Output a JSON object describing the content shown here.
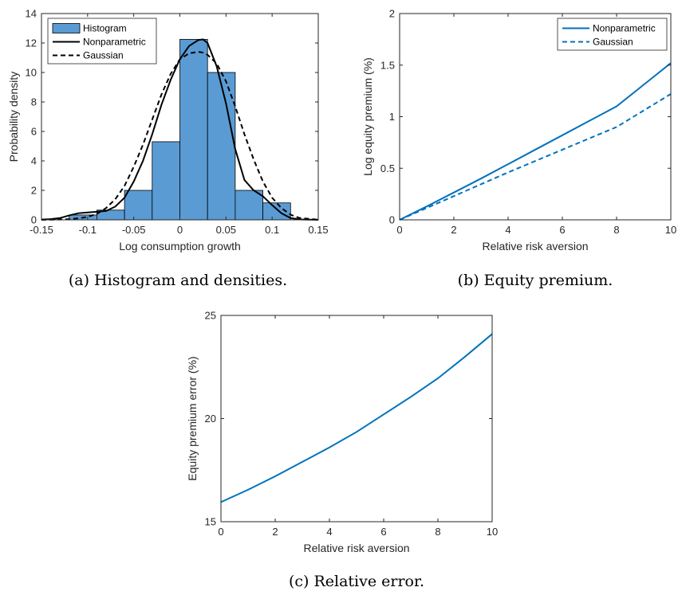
{
  "chart_data": [
    {
      "panel": "a",
      "type": "bar",
      "caption": "(a) Histogram and densities.",
      "xlabel": "Log consumption growth",
      "ylabel": "Probability density",
      "xlim": [
        -0.15,
        0.15
      ],
      "ylim": [
        0,
        14
      ],
      "xticks": [
        -0.15,
        -0.1,
        -0.05,
        0,
        0.05,
        0.1,
        0.15
      ],
      "xtick_labels": [
        "-0.15",
        "-0.1",
        "-0.05",
        "0",
        "0.05",
        "0.1",
        "0.15"
      ],
      "yticks": [
        0,
        2,
        4,
        6,
        8,
        10,
        12,
        14
      ],
      "ytick_labels": [
        "0",
        "2",
        "4",
        "6",
        "8",
        "10",
        "12",
        "14"
      ],
      "legend": [
        "Histogram",
        "Nonparametric",
        "Gaussian"
      ],
      "legend_position": "top-left",
      "histogram": {
        "bin_edges": [
          -0.12,
          -0.09,
          -0.06,
          -0.03,
          0.0,
          0.03,
          0.06,
          0.09,
          0.12
        ],
        "values": [
          0.33,
          0.66,
          2.0,
          5.3,
          12.25,
          10.0,
          2.0,
          1.15
        ],
        "color": "#5A9BD4"
      },
      "series": [
        {
          "name": "Nonparametric",
          "style": "solid",
          "color": "#000000",
          "x": [
            -0.15,
            -0.14,
            -0.13,
            -0.12,
            -0.11,
            -0.1,
            -0.09,
            -0.08,
            -0.07,
            -0.06,
            -0.05,
            -0.04,
            -0.03,
            -0.02,
            -0.01,
            0.0,
            0.01,
            0.02,
            0.025,
            0.03,
            0.04,
            0.05,
            0.06,
            0.07,
            0.08,
            0.09,
            0.1,
            0.11,
            0.12,
            0.13,
            0.15
          ],
          "y": [
            0.02,
            0.05,
            0.12,
            0.3,
            0.45,
            0.5,
            0.55,
            0.6,
            0.9,
            1.5,
            2.6,
            4.0,
            5.8,
            7.8,
            9.5,
            10.9,
            11.8,
            12.2,
            12.25,
            12.0,
            10.4,
            7.9,
            4.8,
            2.7,
            2.0,
            1.6,
            1.0,
            0.45,
            0.12,
            0.03,
            0.0
          ]
        },
        {
          "name": "Gaussian",
          "style": "dashed",
          "color": "#000000",
          "x": [
            -0.15,
            -0.14,
            -0.13,
            -0.12,
            -0.11,
            -0.1,
            -0.09,
            -0.08,
            -0.07,
            -0.06,
            -0.05,
            -0.04,
            -0.03,
            -0.02,
            -0.01,
            0.0,
            0.01,
            0.02,
            0.025,
            0.03,
            0.04,
            0.05,
            0.06,
            0.07,
            0.08,
            0.09,
            0.1,
            0.11,
            0.12,
            0.13,
            0.15
          ],
          "y": [
            0.0,
            0.01,
            0.02,
            0.05,
            0.1,
            0.2,
            0.4,
            0.8,
            1.4,
            2.3,
            3.6,
            5.1,
            6.8,
            8.5,
            9.9,
            10.9,
            11.3,
            11.4,
            11.35,
            11.2,
            10.6,
            9.4,
            7.7,
            5.8,
            4.1,
            2.6,
            1.5,
            0.8,
            0.35,
            0.12,
            0.01
          ]
        }
      ]
    },
    {
      "panel": "b",
      "type": "line",
      "caption": "(b) Equity premium.",
      "xlabel": "Relative risk aversion",
      "ylabel": "Log equity premium (%)",
      "xlim": [
        0,
        10
      ],
      "ylim": [
        0,
        2
      ],
      "xticks": [
        0,
        2,
        4,
        6,
        8,
        10
      ],
      "xtick_labels": [
        "0",
        "2",
        "4",
        "6",
        "8",
        "10"
      ],
      "yticks": [
        0,
        0.5,
        1,
        1.5,
        2
      ],
      "ytick_labels": [
        "0",
        "0.5",
        "1",
        "1.5",
        "2"
      ],
      "legend": [
        "Nonparametric",
        "Gaussian"
      ],
      "legend_position": "top-right",
      "series": [
        {
          "name": "Nonparametric",
          "style": "solid",
          "color": "#0072BD",
          "x": [
            0,
            1,
            2,
            3,
            4,
            5,
            6,
            7,
            8,
            9,
            10
          ],
          "y": [
            0,
            0.13,
            0.265,
            0.4,
            0.54,
            0.68,
            0.82,
            0.96,
            1.1,
            1.31,
            1.52
          ]
        },
        {
          "name": "Gaussian",
          "style": "dashed",
          "color": "#0072BD",
          "x": [
            0,
            1,
            2,
            3,
            4,
            5,
            6,
            7,
            8,
            9,
            10
          ],
          "y": [
            0,
            0.115,
            0.23,
            0.345,
            0.46,
            0.57,
            0.68,
            0.79,
            0.9,
            1.06,
            1.22
          ]
        }
      ]
    },
    {
      "panel": "c",
      "type": "line",
      "caption": "(c) Relative error.",
      "xlabel": "Relative risk aversion",
      "ylabel": "Equity premium error (%)",
      "xlim": [
        0,
        10
      ],
      "ylim": [
        15,
        25
      ],
      "xticks": [
        0,
        2,
        4,
        6,
        8,
        10
      ],
      "xtick_labels": [
        "0",
        "2",
        "4",
        "6",
        "8",
        "10"
      ],
      "yticks": [
        15,
        20,
        25
      ],
      "ytick_labels": [
        "15",
        "20",
        "25"
      ],
      "series": [
        {
          "style": "solid",
          "color": "#0072BD",
          "x": [
            0,
            1,
            2,
            3,
            4,
            5,
            6,
            7,
            8,
            9,
            10
          ],
          "y": [
            15.95,
            16.55,
            17.2,
            17.9,
            18.6,
            19.35,
            20.2,
            21.05,
            21.95,
            23.0,
            24.1
          ]
        }
      ]
    }
  ]
}
